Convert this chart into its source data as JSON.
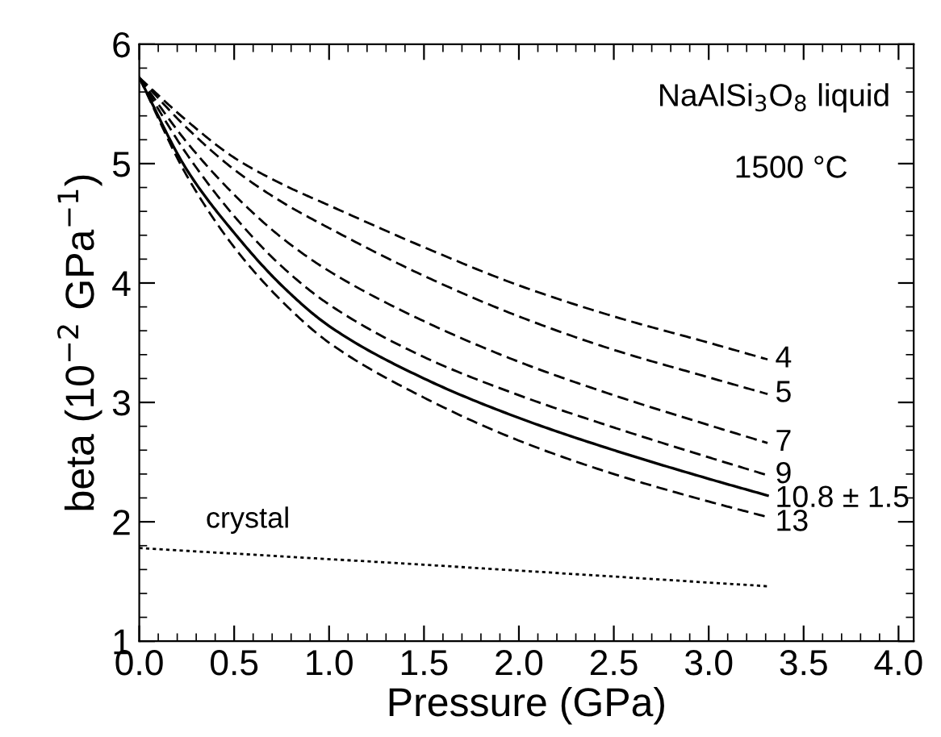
{
  "chart_data": {
    "type": "line",
    "xlabel": "Pressure (GPa)",
    "ylabel": "beta (10$^{−2}$ GPa$^{−1}$)",
    "x": [
      0,
      0.25,
      0.5,
      0.75,
      1.0,
      1.5,
      2.0,
      2.5,
      3.0,
      3.31
    ],
    "series": [
      {
        "name": "4",
        "color": "#000000",
        "line_style": "dashed",
        "values": [
          5.72,
          5.36,
          5.05,
          4.83,
          4.65,
          4.3,
          3.98,
          3.72,
          3.5,
          3.36
        ]
      },
      {
        "name": "5",
        "color": "#000000",
        "line_style": "dashed",
        "values": [
          5.72,
          5.3,
          4.95,
          4.68,
          4.46,
          4.06,
          3.72,
          3.44,
          3.21,
          3.07
        ]
      },
      {
        "name": "7",
        "color": "#000000",
        "line_style": "dashed",
        "values": [
          5.72,
          5.18,
          4.74,
          4.38,
          4.1,
          3.68,
          3.34,
          3.06,
          2.81,
          2.66
        ]
      },
      {
        "name": "9",
        "color": "#000000",
        "line_style": "dashed",
        "values": [
          5.72,
          5.08,
          4.56,
          4.14,
          3.82,
          3.38,
          3.06,
          2.79,
          2.54,
          2.39
        ]
      },
      {
        "name": "10.8 ± 1.5",
        "color": "#000000",
        "line_style": "solid",
        "values": [
          5.72,
          4.95,
          4.42,
          3.98,
          3.64,
          3.2,
          2.87,
          2.6,
          2.36,
          2.22
        ]
      },
      {
        "name": "13",
        "color": "#000000",
        "line_style": "dashed",
        "values": [
          5.72,
          4.9,
          4.3,
          3.85,
          3.5,
          3.04,
          2.68,
          2.4,
          2.17,
          2.04
        ]
      },
      {
        "name": "crystal",
        "color": "#000000",
        "line_style": "dotted",
        "x": [
          0,
          1.5,
          3.31
        ],
        "values": [
          1.78,
          1.64,
          1.46
        ]
      }
    ],
    "annotations": [
      "NaAlSi$_{3}$O$_{8}$ liquid",
      "1500 °C"
    ],
    "xlim": [
      0,
      4.08
    ],
    "ylim": [
      1,
      6
    ],
    "xticks": [
      {
        "value": 0,
        "label": "0.0"
      },
      0.5,
      {
        "value": 1,
        "label": "1.0"
      },
      1.5,
      {
        "value": 2,
        "label": "2.0"
      },
      2.5,
      {
        "value": 3,
        "label": "3.0"
      },
      3.5,
      {
        "value": 4,
        "label": "4.0"
      }
    ],
    "yticks": [
      1,
      2,
      3,
      4,
      5,
      6
    ],
    "grid": false,
    "legend": "right",
    "marker": "none"
  }
}
